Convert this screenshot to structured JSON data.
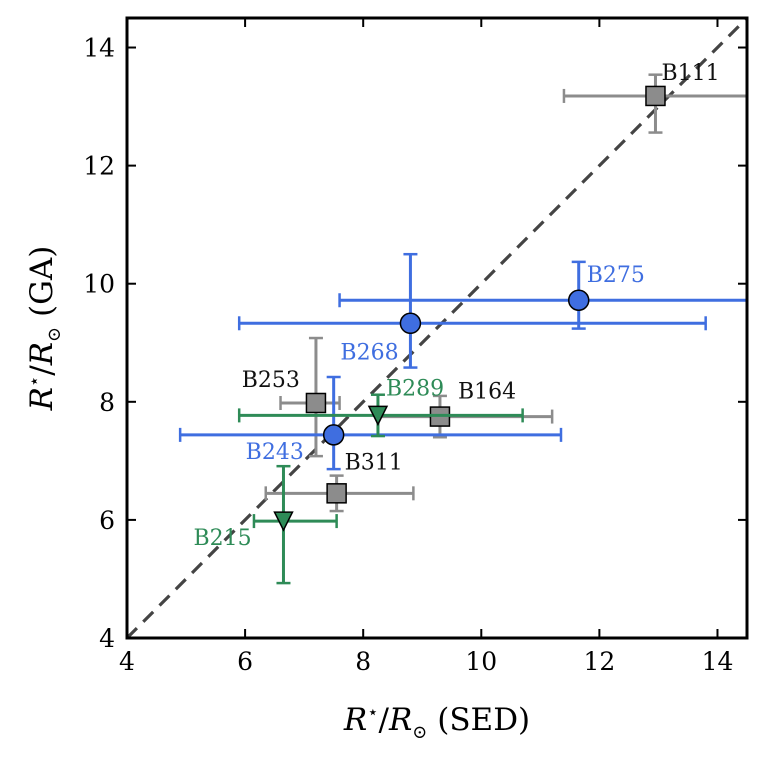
{
  "chart_data": {
    "type": "scatter",
    "xlim": [
      4,
      14.5
    ],
    "ylim": [
      4,
      14.5
    ],
    "xticks": [
      4,
      6,
      8,
      10,
      12,
      14
    ],
    "yticks": [
      4,
      6,
      8,
      10,
      12,
      14
    ],
    "xlabel": {
      "base": "R",
      "sup": "⋆",
      "sep": "/",
      "base2": "R",
      "sub2": "⊙",
      "tail": " (SED)"
    },
    "ylabel": {
      "base": "R",
      "sup": "⋆",
      "sep": "/",
      "base2": "R",
      "sub2": "⊙",
      "tail": " (GA)"
    },
    "reference_line": {
      "style": "dashed",
      "color": "#444444",
      "from": [
        4,
        4
      ],
      "to": [
        14.5,
        14.5
      ]
    },
    "series": [
      {
        "name": "gray",
        "marker": "square",
        "color": "#8c8c8c",
        "label_color": "#111111",
        "points": [
          {
            "label": "B111",
            "x": 12.95,
            "y": 13.18,
            "xerr": [
              1.55,
              1.6
            ],
            "yerr": [
              0.62,
              0.36
            ]
          },
          {
            "label": "B253",
            "x": 7.2,
            "y": 7.98,
            "xerr": [
              0.6,
              0.4
            ],
            "yerr": [
              0.9,
              1.1
            ]
          },
          {
            "label": "B164",
            "x": 9.3,
            "y": 7.75,
            "xerr": [
              1.05,
              1.9
            ],
            "yerr": [
              0.35,
              0.35
            ]
          },
          {
            "label": "B311",
            "x": 7.55,
            "y": 6.45,
            "xerr": [
              1.2,
              1.3
            ],
            "yerr": [
              0.3,
              0.3
            ]
          }
        ]
      },
      {
        "name": "blue",
        "marker": "circle",
        "color": "#3f6ee0",
        "label_color": "#3f6ee0",
        "points": [
          {
            "label": "B275",
            "x": 11.65,
            "y": 9.72,
            "xerr": [
              4.05,
              2.85
            ],
            "yerr": [
              0.48,
              0.65
            ]
          },
          {
            "label": "B268",
            "x": 8.8,
            "y": 9.33,
            "xerr": [
              2.9,
              5.0
            ],
            "yerr": [
              0.75,
              1.17
            ]
          },
          {
            "label": "B243",
            "x": 7.5,
            "y": 7.44,
            "xerr": [
              2.6,
              3.85
            ],
            "yerr": [
              0.58,
              0.98
            ]
          }
        ]
      },
      {
        "name": "green",
        "marker": "triangle-down",
        "color": "#2e8b57",
        "label_color": "#2e8b57",
        "points": [
          {
            "label": "B289",
            "x": 8.25,
            "y": 7.77,
            "xerr": [
              2.35,
              2.45
            ],
            "yerr": [
              0.35,
              0.35
            ]
          },
          {
            "label": "B215",
            "x": 6.65,
            "y": 5.98,
            "xerr": [
              0.5,
              0.9
            ],
            "yerr": [
              1.05,
              0.93
            ]
          }
        ]
      }
    ]
  }
}
